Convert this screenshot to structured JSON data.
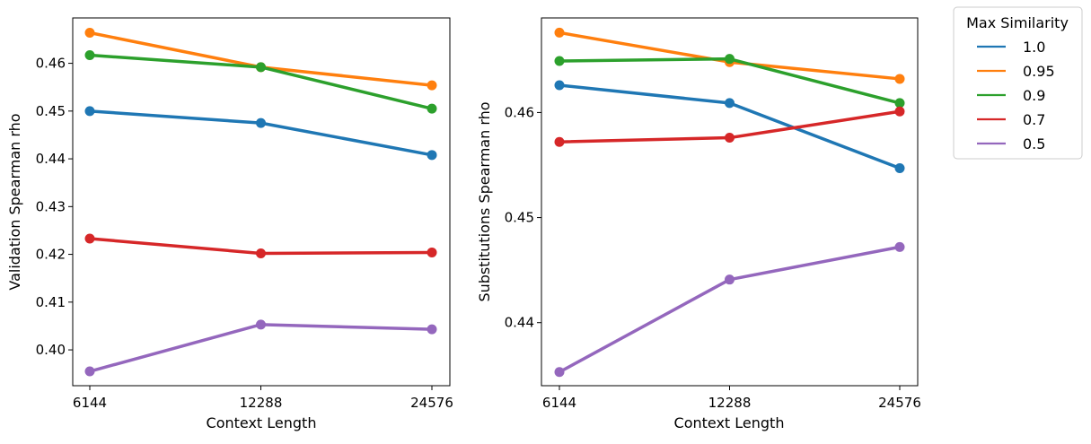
{
  "legend": {
    "title": "Max Similarity",
    "entries": [
      {
        "label": "1.0",
        "color": "#1f77b4"
      },
      {
        "label": "0.95",
        "color": "#ff7f0e"
      },
      {
        "label": "0.9",
        "color": "#2ca02c"
      },
      {
        "label": "0.7",
        "color": "#d62728"
      },
      {
        "label": "0.5",
        "color": "#9467bd"
      }
    ]
  },
  "chart_data": [
    {
      "type": "line",
      "title": "",
      "xlabel": "Context Length",
      "ylabel": "Validation Spearman rho",
      "categories": [
        "6144",
        "12288",
        "24576"
      ],
      "x": [
        6144,
        12288,
        24576
      ],
      "ylim": [
        0.3925,
        0.4695
      ],
      "yticks": [
        0.4,
        0.41,
        0.42,
        0.43,
        0.44,
        0.45,
        0.46
      ],
      "ytick_labels": [
        "0.40",
        "0.41",
        "0.42",
        "0.43",
        "0.44",
        "0.45",
        "0.46"
      ],
      "series": [
        {
          "name": "1.0",
          "values": [
            0.45,
            0.4475,
            0.4408
          ]
        },
        {
          "name": "0.95",
          "values": [
            0.4664,
            0.4592,
            0.4554
          ]
        },
        {
          "name": "0.9",
          "values": [
            0.4617,
            0.4592,
            0.4505
          ]
        },
        {
          "name": "0.7",
          "values": [
            0.4233,
            0.4202,
            0.4204
          ]
        },
        {
          "name": "0.5",
          "values": [
            0.3955,
            0.4053,
            0.4043
          ]
        }
      ]
    },
    {
      "type": "line",
      "title": "",
      "xlabel": "Context Length",
      "ylabel": "Substitutions Spearman rho",
      "categories": [
        "6144",
        "12288",
        "24576"
      ],
      "x": [
        6144,
        12288,
        24576
      ],
      "ylim": [
        0.434,
        0.469
      ],
      "yticks": [
        0.44,
        0.45,
        0.46
      ],
      "ytick_labels": [
        "0.44",
        "0.45",
        "0.46"
      ],
      "series": [
        {
          "name": "1.0",
          "values": [
            0.4626,
            0.4609,
            0.4547
          ]
        },
        {
          "name": "0.95",
          "values": [
            0.4676,
            0.4648,
            0.4632
          ]
        },
        {
          "name": "0.9",
          "values": [
            0.4649,
            0.4651,
            0.4609
          ]
        },
        {
          "name": "0.7",
          "values": [
            0.4572,
            0.4576,
            0.4601
          ]
        },
        {
          "name": "0.5",
          "values": [
            0.4353,
            0.4441,
            0.4472
          ]
        }
      ]
    }
  ]
}
